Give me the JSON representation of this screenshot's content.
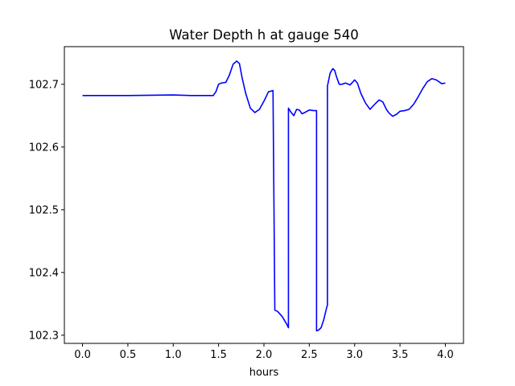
{
  "chart_data": {
    "type": "line",
    "title": "Water Depth h at gauge 540",
    "xlabel": "hours",
    "ylabel": "",
    "xlim": [
      -0.2,
      4.2
    ],
    "ylim": [
      102.287,
      102.76
    ],
    "xticks": [
      0.0,
      0.5,
      1.0,
      1.5,
      2.0,
      2.5,
      3.0,
      3.5,
      4.0
    ],
    "xtick_labels": [
      "0.0",
      "0.5",
      "1.0",
      "1.5",
      "2.0",
      "2.5",
      "3.0",
      "3.5",
      "4.0"
    ],
    "yticks": [
      102.3,
      102.4,
      102.5,
      102.6,
      102.7
    ],
    "ytick_labels": [
      "102.3",
      "102.4",
      "102.5",
      "102.6",
      "102.7"
    ],
    "grid": false,
    "color": "#0000ff",
    "series": [
      {
        "x": [
          0.0,
          0.5,
          1.0,
          1.2,
          1.44,
          1.47,
          1.5,
          1.53,
          1.58,
          1.62,
          1.66,
          1.7,
          1.73,
          1.76,
          1.8,
          1.85,
          1.9,
          1.95,
          2.0,
          2.05,
          2.1,
          2.12,
          2.12,
          2.15,
          2.2,
          2.25,
          2.27,
          2.27,
          2.3,
          2.33,
          2.36,
          2.39,
          2.42,
          2.45,
          2.5,
          2.55,
          2.58,
          2.58,
          2.6,
          2.63,
          2.66,
          2.69,
          2.7,
          2.7,
          2.73,
          2.76,
          2.78,
          2.8,
          2.83,
          2.86,
          2.9,
          2.95,
          3.0,
          3.03,
          3.07,
          3.12,
          3.17,
          3.22,
          3.27,
          3.31,
          3.35,
          3.38,
          3.42,
          3.46,
          3.5,
          3.55,
          3.6,
          3.65,
          3.7,
          3.75,
          3.8,
          3.85,
          3.9,
          3.93,
          3.96,
          4.0
        ],
        "y": [
          102.682,
          102.682,
          102.683,
          102.682,
          102.682,
          102.688,
          102.7,
          102.702,
          102.703,
          102.715,
          102.732,
          102.737,
          102.733,
          102.71,
          102.685,
          102.662,
          102.655,
          102.66,
          102.673,
          102.688,
          102.69,
          102.34,
          102.34,
          102.338,
          102.33,
          102.318,
          102.312,
          102.662,
          102.655,
          102.65,
          102.66,
          102.659,
          102.653,
          102.655,
          102.659,
          102.658,
          102.658,
          102.307,
          102.308,
          102.312,
          102.325,
          102.343,
          102.348,
          102.697,
          102.718,
          102.725,
          102.722,
          102.712,
          102.7,
          102.7,
          102.702,
          102.699,
          102.707,
          102.702,
          102.685,
          102.67,
          102.66,
          102.668,
          102.675,
          102.672,
          102.66,
          102.654,
          102.649,
          102.652,
          102.657,
          102.658,
          102.66,
          102.668,
          102.68,
          102.693,
          102.704,
          102.709,
          102.707,
          102.704,
          102.701,
          102.702
        ]
      }
    ]
  }
}
